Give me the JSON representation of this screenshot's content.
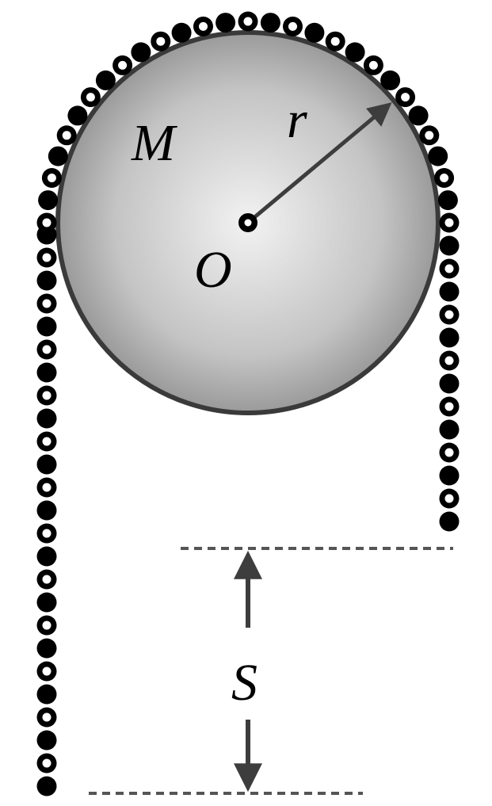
{
  "labels": {
    "mass": "M",
    "radius": "r",
    "center": "O",
    "distance": "S"
  },
  "colors": {
    "disk_edge": "#3a3a3a",
    "disk_light": "#f2f2f2",
    "disk_dark": "#9a9a9a",
    "link_solid": "#000000",
    "link_ring": "#000000",
    "link_hole": "#ffffff",
    "arrow": "#3d3d3d",
    "dash": "#555555"
  }
}
